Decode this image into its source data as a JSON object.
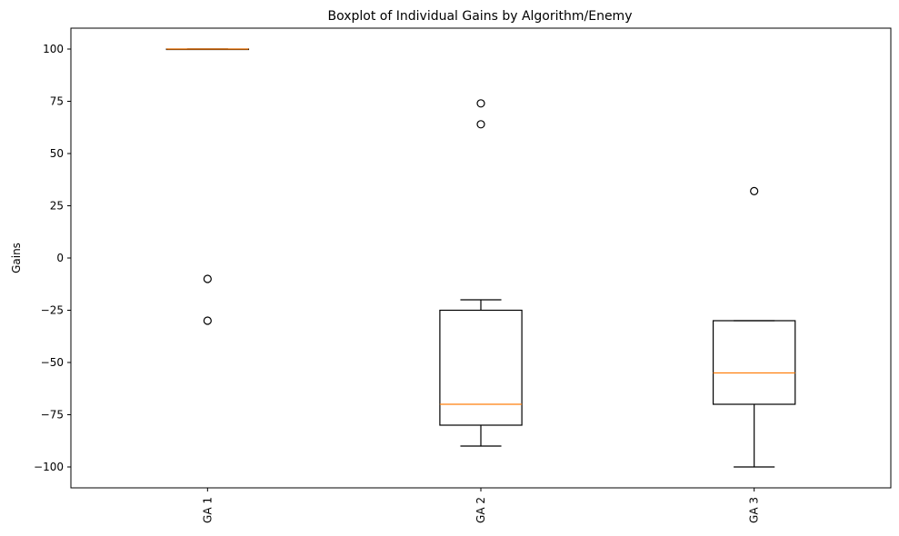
{
  "chart_data": {
    "type": "boxplot",
    "title": "Boxplot of Individual Gains by Algorithm/Enemy",
    "xlabel": "",
    "ylabel": "Gains",
    "ylim": [
      -110,
      110
    ],
    "yticks": [
      100,
      75,
      50,
      25,
      0,
      -25,
      -50,
      -75,
      -100
    ],
    "ytick_labels": [
      "100",
      "75",
      "50",
      "25",
      "0",
      "−25",
      "−50",
      "−75",
      "−100"
    ],
    "grid": false,
    "categories": [
      "GA 1",
      "GA 2",
      "GA 3"
    ],
    "boxes": [
      {
        "label": "GA 1",
        "whisker_low": 100,
        "q1": 100,
        "median": 100,
        "q3": 100,
        "whisker_high": 100,
        "outliers": [
          -10,
          -30
        ]
      },
      {
        "label": "GA 2",
        "whisker_low": -90,
        "q1": -80,
        "median": -70,
        "q3": -25,
        "whisker_high": -20,
        "outliers": [
          74,
          64
        ]
      },
      {
        "label": "GA 3",
        "whisker_low": -100,
        "q1": -70,
        "median": -55,
        "q3": -30,
        "whisker_high": -30,
        "outliers": [
          32
        ]
      }
    ],
    "colors": {
      "box": "#000000",
      "median": "#ff7f0e",
      "outlier": "#000000"
    }
  }
}
